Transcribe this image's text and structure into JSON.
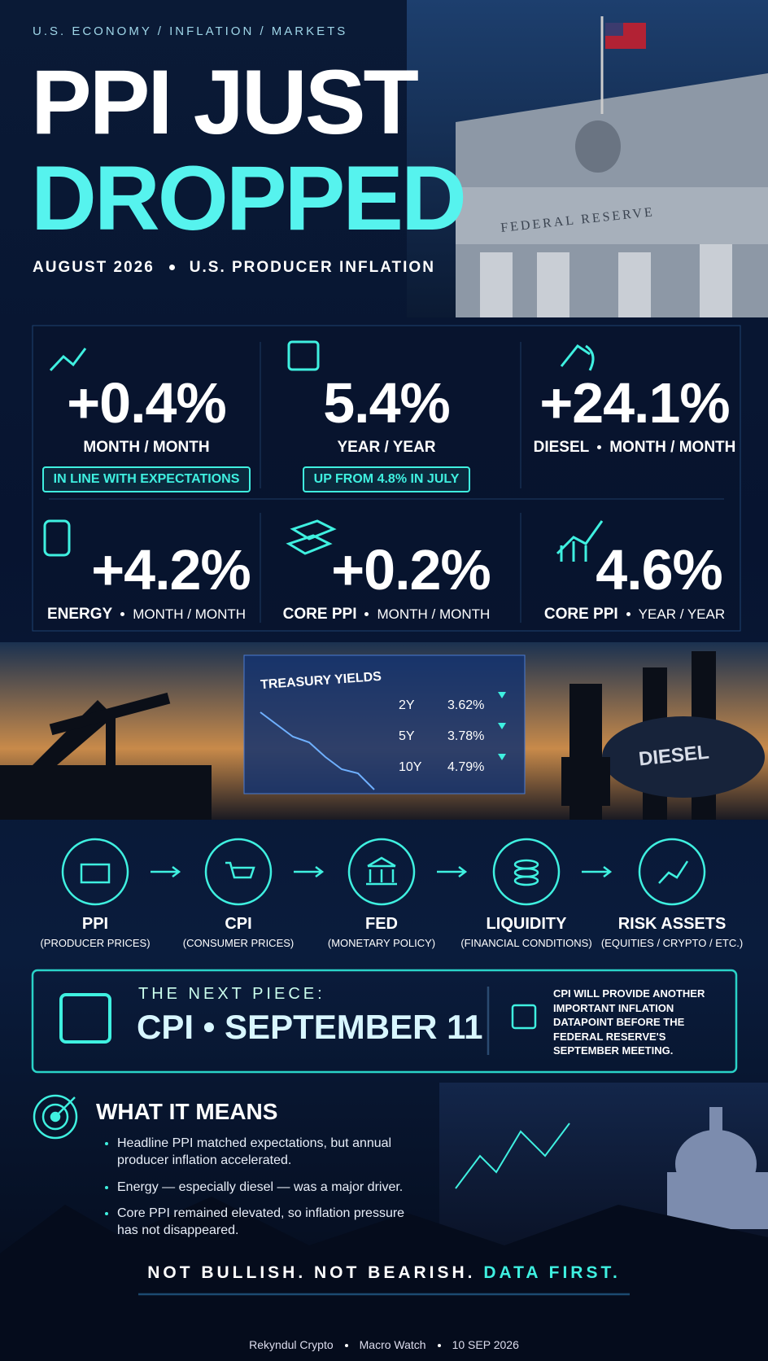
{
  "header": {
    "breadcrumb": "U.S. ECONOMY  /  INFLATION  /  MARKETS",
    "title_lines": [
      "PPI JUST",
      "DROPPED"
    ],
    "subtitle": [
      "AUGUST 2026",
      "U.S. PRODUCER INFLATION"
    ],
    "building_label": "FEDERAL RESERVE"
  },
  "stats": [
    {
      "value": "+0.4%",
      "label": "MONTH / MONTH",
      "note": "IN LINE WITH EXPECTATIONS"
    },
    {
      "value": "5.4%",
      "label": "YEAR / YEAR",
      "note": "UP FROM 4.8% IN JULY"
    },
    {
      "value": "+24.1%",
      "label_bold": "DIESEL",
      "label": "MONTH / MONTH"
    },
    {
      "value": "+4.2%",
      "label_bold": "ENERGY",
      "label": "MONTH / MONTH"
    },
    {
      "value": "+0.2%",
      "label_bold": "CORE PPI",
      "label": "MONTH / MONTH"
    },
    {
      "value": "4.6%",
      "label_bold": "CORE PPI",
      "label": "YEAR / YEAR"
    }
  ],
  "treasury": {
    "title": "TREASURY YIELDS",
    "rows": [
      [
        "2Y",
        "3.62%"
      ],
      [
        "5Y",
        "3.78%"
      ],
      [
        "10Y",
        "4.79%"
      ]
    ],
    "tanker_label": "DIESEL"
  },
  "flow": [
    {
      "label": "PPI",
      "sub": "(PRODUCER PRICES)"
    },
    {
      "label": "CPI",
      "sub": "(CONSUMER PRICES)"
    },
    {
      "label": "FED",
      "sub": "(MONETARY POLICY)"
    },
    {
      "label": "LIQUIDITY",
      "sub": "(FINANCIAL CONDITIONS)"
    },
    {
      "label": "RISK ASSETS",
      "sub": "(EQUITIES / CRYPTO / ETC.)"
    }
  ],
  "next": {
    "kicker": "THE NEXT PIECE:",
    "headline": "CPI • SEPTEMBER 11",
    "note": "CPI WILL PROVIDE ANOTHER IMPORTANT INFLATION DATAPOINT BEFORE THE FEDERAL RESERVE'S SEPTEMBER MEETING."
  },
  "meaning": {
    "title": "WHAT IT MEANS",
    "bullets": [
      "Headline PPI matched expectations, but annual producer inflation accelerated.",
      "Energy — especially diesel — was a major driver.",
      "Core PPI remained elevated, so inflation pressure has not disappeared."
    ]
  },
  "tagline": [
    "NOT BULLISH. NOT BEARISH.",
    "DATA FIRST."
  ],
  "credit": [
    "Rekyndul Crypto",
    "Macro Watch",
    "10 SEP 2026"
  ]
}
